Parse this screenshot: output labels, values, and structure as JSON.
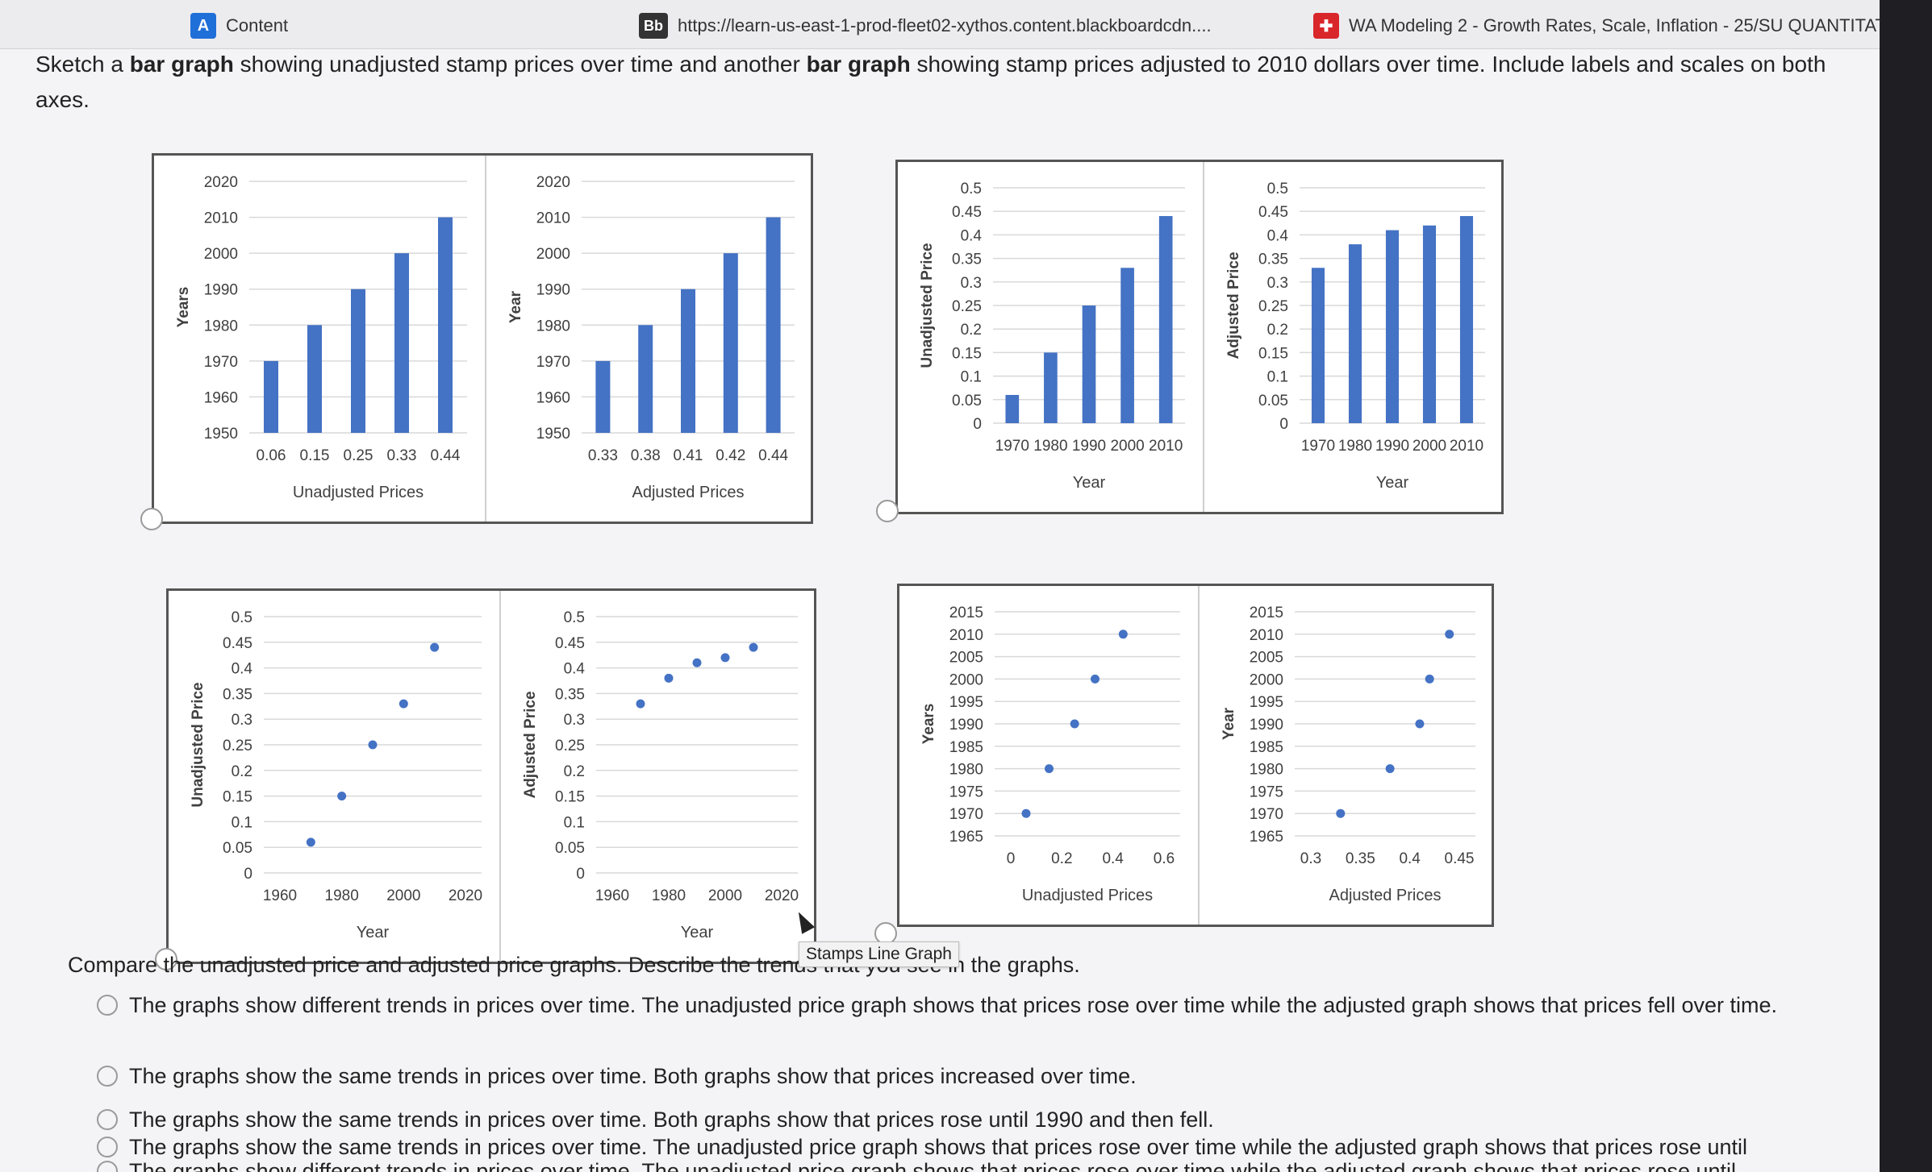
{
  "tabs": [
    {
      "label": "Content",
      "icon": "A"
    },
    {
      "label": "https://learn-us-east-1-prod-fleet02-xythos.content.blackboardcdn....",
      "icon": "Bb"
    },
    {
      "label": "WA Modeling 2 - Growth Rates, Scale, Inflation - 25/SU QUANTITATI...",
      "icon": "✚"
    }
  ],
  "prompt": {
    "p1": "Sketch a ",
    "b1": "bar graph",
    "p2": " showing unadjusted stamp prices over time and another ",
    "b2": "bar graph",
    "p3": " showing stamp prices adjusted to 2010 dollars over time. Include labels and scales on both axes."
  },
  "tooltip": "Stamps Line Graph",
  "question": "Compare the unadjusted price and adjusted price graphs. Describe the trends that you see in the graphs.",
  "options": [
    "The graphs show different trends in prices over time. The unadjusted price graph shows that prices rose over time while the adjusted graph shows that prices fell over time.",
    "The graphs show the same trends in prices over time. Both graphs show that prices increased over time.",
    "The graphs show the same trends in prices over time. Both graphs show that prices rose until 1990 and then fell.",
    "The graphs show the same trends in prices over time. The unadjusted price graph shows that prices rose over time while the adjusted graph shows that prices rose until",
    "The graphs show different trends in prices over time. The unadjusted price graph shows that prices rose over time while the adjusted graph shows that prices rose until"
  ],
  "colors": {
    "bar": "#4472c4",
    "grid": "#d9d9d9",
    "axis_text": "#404040"
  },
  "chart_data": [
    {
      "id": "A1",
      "type": "bar",
      "categories": [
        "0.06",
        "0.15",
        "0.25",
        "0.33",
        "0.44"
      ],
      "values": [
        1970,
        1980,
        1990,
        2000,
        2010
      ],
      "xlabel": "Unadjusted Prices",
      "ylabel": "Years",
      "yticks": [
        1950,
        1960,
        1970,
        1980,
        1990,
        2000,
        2010,
        2020
      ],
      "ylim": [
        1950,
        2020
      ]
    },
    {
      "id": "A2",
      "type": "bar",
      "categories": [
        "0.33",
        "0.38",
        "0.41",
        "0.42",
        "0.44"
      ],
      "values": [
        1970,
        1980,
        1990,
        2000,
        2010
      ],
      "xlabel": "Adjusted Prices",
      "ylabel": "Year",
      "yticks": [
        1950,
        1960,
        1970,
        1980,
        1990,
        2000,
        2010,
        2020
      ],
      "ylim": [
        1950,
        2020
      ]
    },
    {
      "id": "B1",
      "type": "bar",
      "categories": [
        "1970",
        "1980",
        "1990",
        "2000",
        "2010"
      ],
      "values": [
        0.06,
        0.15,
        0.25,
        0.33,
        0.44
      ],
      "xlabel": "Year",
      "ylabel": "Unadjusted Price",
      "yticks": [
        "0",
        "0.05",
        "0.1",
        "0.15",
        "0.2",
        "0.25",
        "0.3",
        "0.35",
        "0.4",
        "0.45",
        "0.5"
      ],
      "ylim": [
        0,
        0.5
      ]
    },
    {
      "id": "B2",
      "type": "bar",
      "categories": [
        "1970",
        "1980",
        "1990",
        "2000",
        "2010"
      ],
      "values": [
        0.33,
        0.38,
        0.41,
        0.42,
        0.44
      ],
      "xlabel": "Year",
      "ylabel": "Adjusted Price",
      "yticks": [
        "0",
        "0.05",
        "0.1",
        "0.15",
        "0.2",
        "0.25",
        "0.3",
        "0.35",
        "0.4",
        "0.45",
        "0.5"
      ],
      "ylim": [
        0,
        0.5
      ]
    },
    {
      "id": "C1",
      "type": "scatter",
      "x": [
        1970,
        1980,
        1990,
        2000,
        2010
      ],
      "y": [
        0.06,
        0.15,
        0.25,
        0.33,
        0.44
      ],
      "xlabel": "Year",
      "ylabel": "Unadjusted Price",
      "xticks": [
        "1960",
        "1980",
        "2000",
        "2020"
      ],
      "xlim": [
        1960,
        2020
      ],
      "yticks": [
        "0",
        "0.05",
        "0.1",
        "0.15",
        "0.2",
        "0.25",
        "0.3",
        "0.35",
        "0.4",
        "0.45",
        "0.5"
      ],
      "ylim": [
        0,
        0.5
      ]
    },
    {
      "id": "C2",
      "type": "scatter",
      "x": [
        1970,
        1980,
        1990,
        2000,
        2010
      ],
      "y": [
        0.33,
        0.38,
        0.41,
        0.42,
        0.44
      ],
      "xlabel": "Year",
      "ylabel": "Adjusted Price",
      "xticks": [
        "1960",
        "1980",
        "2000",
        "2020"
      ],
      "xlim": [
        1960,
        2020
      ],
      "yticks": [
        "0",
        "0.05",
        "0.1",
        "0.15",
        "0.2",
        "0.25",
        "0.3",
        "0.35",
        "0.4",
        "0.45",
        "0.5"
      ],
      "ylim": [
        0,
        0.5
      ]
    },
    {
      "id": "D1",
      "type": "scatter",
      "x": [
        0.06,
        0.15,
        0.25,
        0.33,
        0.44
      ],
      "y": [
        1970,
        1980,
        1990,
        2000,
        2010
      ],
      "xlabel": "Unadjusted Prices",
      "ylabel": "Years",
      "xticks": [
        "0",
        "0.2",
        "0.4",
        "0.6"
      ],
      "xlim": [
        0,
        0.6
      ],
      "yticks": [
        "1965",
        "1970",
        "1975",
        "1980",
        "1985",
        "1990",
        "1995",
        "2000",
        "2005",
        "2010",
        "2015"
      ],
      "ylim": [
        1965,
        2015
      ]
    },
    {
      "id": "D2",
      "type": "scatter",
      "x": [
        0.33,
        0.38,
        0.41,
        0.42,
        0.44
      ],
      "y": [
        1970,
        1980,
        1990,
        2000,
        2010
      ],
      "xlabel": "Adjusted Prices",
      "ylabel": "Year",
      "xticks": [
        "0.3",
        "0.35",
        "0.4",
        "0.45"
      ],
      "xlim": [
        0.3,
        0.45
      ],
      "yticks": [
        "1965",
        "1970",
        "1975",
        "1980",
        "1985",
        "1990",
        "1995",
        "2000",
        "2005",
        "2010",
        "2015"
      ],
      "ylim": [
        1965,
        2015
      ]
    }
  ]
}
